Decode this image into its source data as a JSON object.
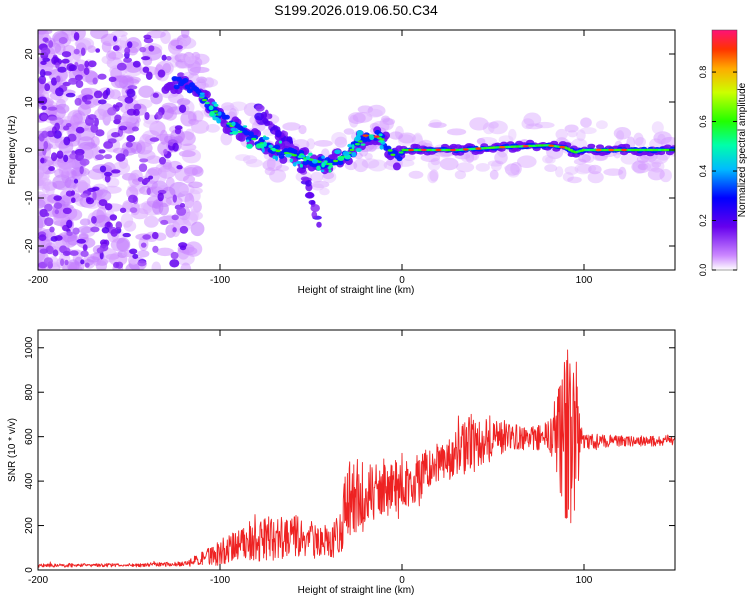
{
  "title": "S199.2026.019.06.50.C34",
  "chart_data": [
    {
      "type": "heatmap",
      "xlabel": "Height of straight line (km)",
      "ylabel": "Frequency (Hz)",
      "xlim": [
        -200,
        150
      ],
      "ylim": [
        -25,
        25
      ],
      "x_ticks": [
        -200,
        -100,
        0,
        100
      ],
      "y_ticks": [
        -20,
        -10,
        0,
        10,
        20
      ],
      "colorbar": {
        "label": "Normalized spectral amplitude",
        "range": [
          0,
          0.97
        ],
        "ticks": [
          0.0,
          0.2,
          0.4,
          0.6,
          0.8
        ]
      },
      "ridge": {
        "x": [
          -128,
          -120,
          -110,
          -100,
          -90,
          -80,
          -70,
          -60,
          -50,
          -40,
          -30,
          -25,
          -20,
          -15,
          -10,
          -5,
          -2,
          0,
          10,
          30,
          50,
          80,
          90,
          95,
          100,
          150
        ],
        "y": [
          14,
          14,
          11,
          7,
          4,
          2,
          0,
          -1,
          -2,
          -3,
          -1,
          1,
          3,
          3,
          2,
          -1,
          -2,
          0,
          0,
          0,
          0.5,
          1,
          0.5,
          -0.5,
          0,
          0
        ]
      },
      "branch": {
        "x": [
          -80,
          -70,
          -60,
          -55,
          -50,
          -45
        ],
        "y": [
          8,
          5,
          0,
          -3,
          -10,
          -16
        ]
      }
    },
    {
      "type": "line",
      "xlabel": "Height of straight line (km)",
      "ylabel": "SNR (10 * v/v)",
      "xlim": [
        -200,
        150
      ],
      "ylim": [
        0,
        1080
      ],
      "x_ticks": [
        -200,
        -100,
        0,
        100
      ],
      "y_ticks": [
        0,
        200,
        400,
        600,
        800,
        1000
      ],
      "series": [
        {
          "name": "SNR",
          "color": "#ee2222",
          "x": [
            -200,
            -150,
            -120,
            -110,
            -100,
            -90,
            -80,
            -70,
            -60,
            -50,
            -40,
            -35,
            -30,
            -25,
            -20,
            -15,
            -10,
            -5,
            0,
            10,
            20,
            30,
            40,
            50,
            60,
            70,
            80,
            85,
            90,
            95,
            100,
            110,
            120,
            130,
            140,
            150
          ],
          "y": [
            20,
            22,
            28,
            50,
            80,
            110,
            130,
            140,
            150,
            140,
            120,
            150,
            300,
            330,
            300,
            340,
            350,
            380,
            380,
            420,
            470,
            530,
            580,
            600,
            600,
            590,
            600,
            600,
            620,
            600,
            580,
            580,
            580,
            580,
            580,
            580
          ],
          "noise": [
            8,
            8,
            10,
            30,
            60,
            70,
            90,
            110,
            100,
            90,
            60,
            100,
            180,
            180,
            140,
            140,
            120,
            120,
            110,
            110,
            100,
            100,
            150,
            100,
            60,
            50,
            70,
            180,
            400,
            400,
            40,
            30,
            25,
            25,
            25,
            25
          ]
        }
      ]
    }
  ]
}
